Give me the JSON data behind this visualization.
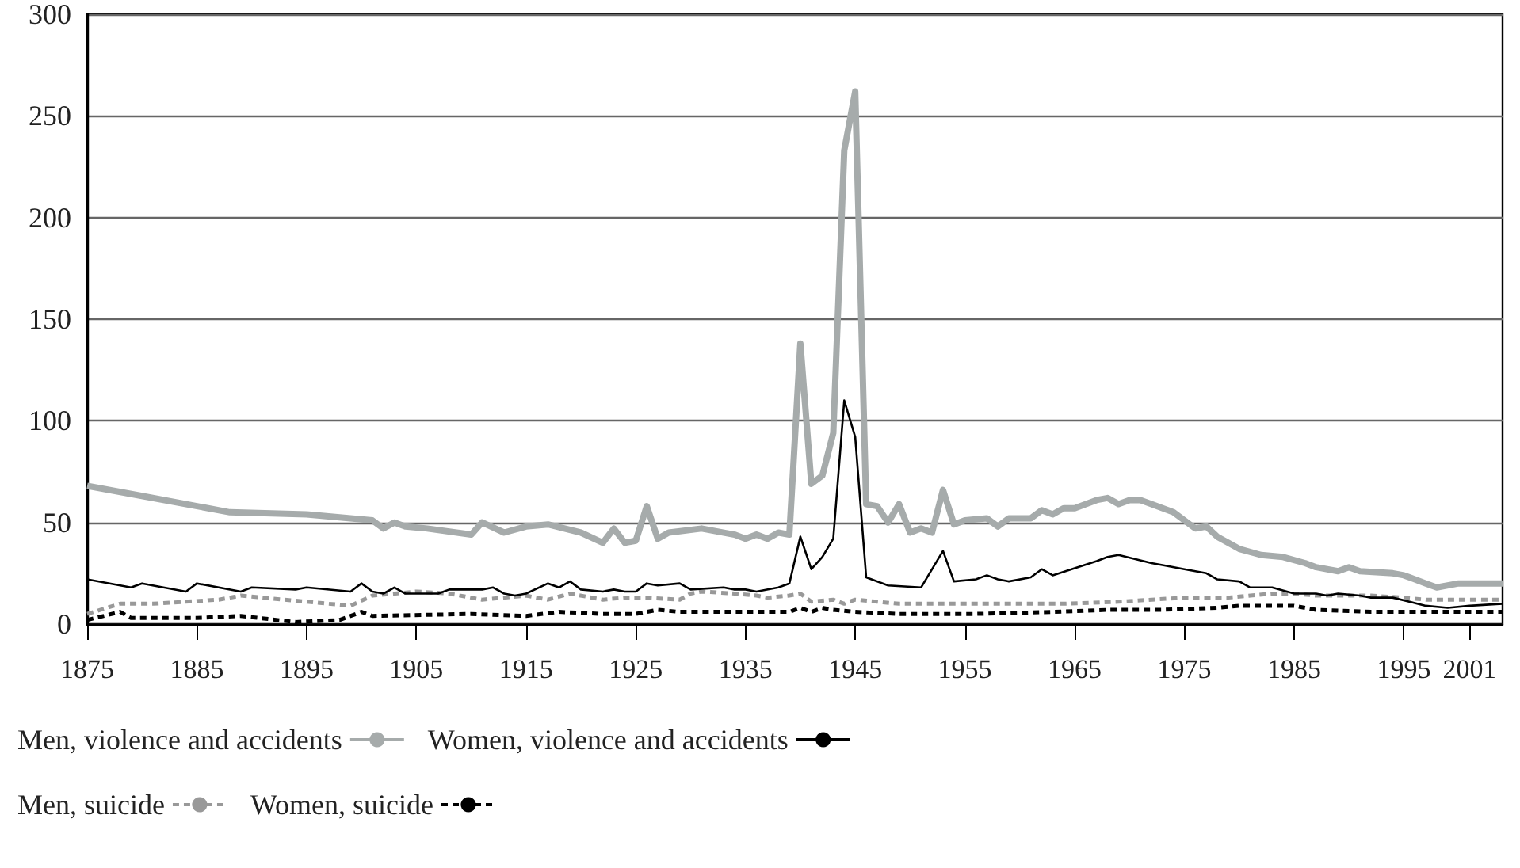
{
  "chart_data": {
    "type": "line",
    "xlim": [
      1875,
      2004
    ],
    "xticks": [
      1875,
      1885,
      1895,
      1905,
      1915,
      1925,
      1935,
      1945,
      1955,
      1965,
      1975,
      1985,
      1995,
      2001
    ],
    "ylim": [
      0,
      300
    ],
    "yticks": [
      0,
      50,
      100,
      150,
      200,
      250,
      300
    ],
    "grid": "y",
    "legend": "bottom",
    "marker": "none",
    "series": [
      {
        "name": "Men, violence and accidents",
        "color": "#a6abab",
        "line_style": "solid",
        "x": [
          1875,
          1880,
          1888,
          1895,
          1901,
          1902,
          1903,
          1904,
          1906,
          1910,
          1911,
          1913,
          1915,
          1917,
          1920,
          1922,
          1923,
          1924,
          1925,
          1926,
          1927,
          1928,
          1931,
          1934,
          1935,
          1936,
          1937,
          1938,
          1939,
          1940,
          1941,
          1942,
          1943,
          1944,
          1945,
          1946,
          1947,
          1948,
          1949,
          1950,
          1951,
          1952,
          1953,
          1954,
          1955,
          1957,
          1958,
          1959,
          1960,
          1961,
          1962,
          1963,
          1964,
          1965,
          1967,
          1968,
          1969,
          1970,
          1971,
          1972,
          1974,
          1976,
          1977,
          1978,
          1980,
          1982,
          1984,
          1986,
          1987,
          1989,
          1990,
          1991,
          1994,
          1995,
          1997,
          1998,
          2000,
          2004
        ],
        "values": [
          68,
          63,
          55,
          54,
          51,
          47,
          50,
          48,
          47,
          44,
          50,
          45,
          48,
          49,
          45,
          40,
          47,
          40,
          41,
          58,
          42,
          45,
          47,
          44,
          42,
          44,
          42,
          45,
          44,
          138,
          69,
          73,
          94,
          233,
          262,
          59,
          58,
          50,
          59,
          45,
          47,
          45,
          66,
          49,
          51,
          52,
          48,
          52,
          52,
          52,
          56,
          54,
          57,
          57,
          61,
          62,
          59,
          61,
          61,
          59,
          55,
          47,
          48,
          43,
          37,
          34,
          33,
          30,
          28,
          26,
          28,
          26,
          25,
          24,
          20,
          18,
          20,
          20
        ]
      },
      {
        "name": "Women, violence and accidents",
        "color": "#000000",
        "line_style": "solid",
        "x": [
          1875,
          1879,
          1880,
          1884,
          1885,
          1889,
          1890,
          1894,
          1895,
          1899,
          1900,
          1901,
          1902,
          1903,
          1904,
          1907,
          1908,
          1911,
          1912,
          1913,
          1914,
          1915,
          1917,
          1918,
          1919,
          1920,
          1922,
          1923,
          1924,
          1925,
          1926,
          1927,
          1929,
          1930,
          1933,
          1934,
          1935,
          1936,
          1938,
          1939,
          1940,
          1941,
          1942,
          1943,
          1944,
          1945,
          1946,
          1948,
          1951,
          1953,
          1954,
          1956,
          1957,
          1958,
          1959,
          1961,
          1962,
          1963,
          1967,
          1968,
          1969,
          1972,
          1973,
          1975,
          1977,
          1978,
          1980,
          1981,
          1983,
          1985,
          1987,
          1988,
          1989,
          1991,
          1992,
          1994,
          1997,
          1999,
          2001,
          2004
        ],
        "values": [
          22,
          18,
          20,
          16,
          20,
          16,
          18,
          17,
          18,
          16,
          20,
          16,
          15,
          18,
          15,
          15,
          17,
          17,
          18,
          15,
          14,
          15,
          20,
          18,
          21,
          17,
          16,
          17,
          16,
          16,
          20,
          19,
          20,
          17,
          18,
          17,
          17,
          16,
          18,
          20,
          43,
          27,
          33,
          42,
          110,
          92,
          23,
          19,
          18,
          36,
          21,
          22,
          24,
          22,
          21,
          23,
          27,
          24,
          31,
          33,
          34,
          30,
          29,
          27,
          25,
          22,
          21,
          18,
          18,
          15,
          15,
          14,
          15,
          14,
          13,
          13,
          9,
          8,
          9,
          10
        ]
      },
      {
        "name": "Men, suicide",
        "color": "#999999",
        "line_style": "dashed",
        "x": [
          1875,
          1878,
          1881,
          1887,
          1889,
          1895,
          1899,
          1901,
          1905,
          1908,
          1911,
          1915,
          1917,
          1919,
          1922,
          1924,
          1926,
          1929,
          1930,
          1931,
          1934,
          1936,
          1937,
          1939,
          1940,
          1941,
          1943,
          1944,
          1945,
          1947,
          1949,
          1954,
          1959,
          1964,
          1969,
          1975,
          1979,
          1983,
          1985,
          1987,
          1992,
          1995,
          1997,
          2004
        ],
        "values": [
          5,
          10,
          10,
          12,
          14,
          11,
          9,
          14,
          16,
          15,
          12,
          14,
          12,
          15,
          12,
          13,
          13,
          12,
          15,
          16,
          15,
          14,
          13,
          14,
          15,
          11,
          12,
          10,
          12,
          11,
          10,
          10,
          10,
          10,
          11,
          13,
          13,
          15,
          15,
          14,
          14,
          13,
          12,
          12
        ]
      },
      {
        "name": "Women, suicide",
        "color": "#000000",
        "line_style": "dashed",
        "x": [
          1875,
          1878,
          1879,
          1885,
          1889,
          1894,
          1898,
          1900,
          1901,
          1910,
          1915,
          1918,
          1922,
          1925,
          1927,
          1929,
          1934,
          1935,
          1939,
          1940,
          1941,
          1942,
          1943,
          1945,
          1949,
          1956,
          1963,
          1968,
          1973,
          1978,
          1980,
          1985,
          1987,
          1992,
          1997,
          2004
        ],
        "values": [
          2,
          6,
          3,
          3,
          4,
          1,
          2,
          6,
          4,
          5,
          4,
          6,
          5,
          5,
          7,
          6,
          6,
          6,
          6,
          8,
          6,
          8,
          7,
          6,
          5,
          5,
          6,
          7,
          7,
          8,
          9,
          9,
          7,
          6,
          6,
          6
        ]
      }
    ]
  }
}
